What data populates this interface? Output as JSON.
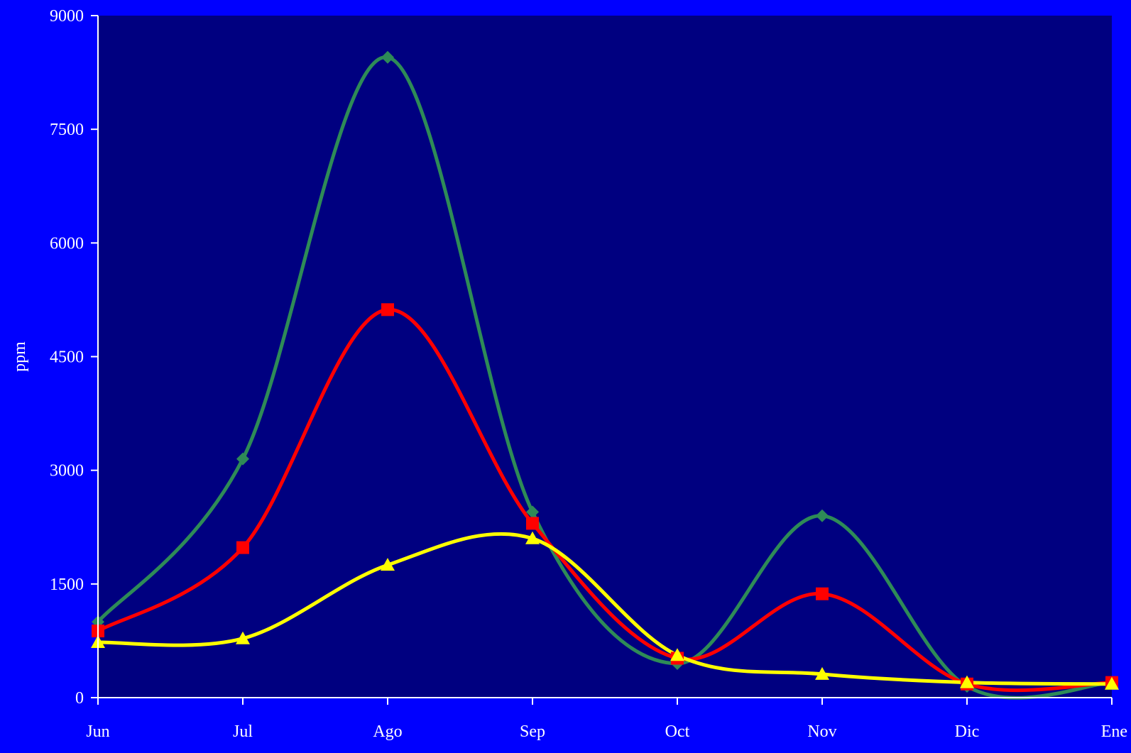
{
  "colors": {
    "background": "#0000FF",
    "plot_area": "#000080",
    "axis": "#FFFFFF",
    "text": "#FFFFFF"
  },
  "chart_data": {
    "type": "line",
    "title": "",
    "xlabel": "",
    "ylabel": "ppm",
    "categories": [
      "Jun",
      "Jul",
      "Ago",
      "Sep",
      "Oct",
      "Nov",
      "Dic",
      "Ene"
    ],
    "ylim": [
      0,
      9000
    ],
    "yticks": [
      0,
      1500,
      3000,
      4500,
      6000,
      7500,
      9000
    ],
    "grid": false,
    "legend": "none",
    "smooth": true,
    "series": [
      {
        "color": "#2E8B57",
        "marker": "diamond",
        "values": [
          1000,
          3150,
          8450,
          2450,
          450,
          2400,
          150,
          200
        ]
      },
      {
        "color": "#FF0000",
        "marker": "square",
        "values": [
          880,
          1980,
          5120,
          2300,
          520,
          1370,
          180,
          200
        ]
      },
      {
        "color": "#FFFF00",
        "marker": "triangle",
        "values": [
          730,
          780,
          1750,
          2100,
          560,
          310,
          200,
          180
        ]
      }
    ]
  }
}
